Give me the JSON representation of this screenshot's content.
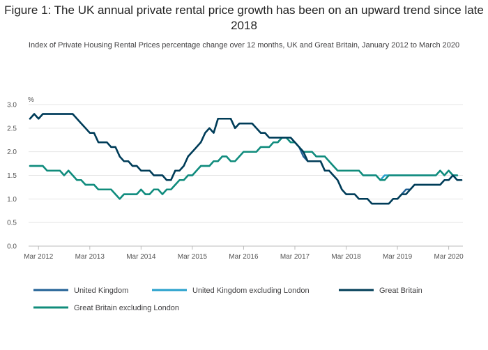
{
  "chart_data": {
    "type": "line",
    "title": "Figure 1: The UK annual private rental price growth has been on an upward trend since late 2018",
    "subtitle": "Index of Private Housing Rental Prices percentage change over 12 months, UK and Great Britain, January 2012 to March 2020",
    "ylabel": "%",
    "ylim": [
      0,
      3
    ],
    "yticks": [
      "0.0",
      "0.5",
      "1.0",
      "1.5",
      "2.0",
      "2.5",
      "3.0"
    ],
    "xticks": [
      "Mar 2012",
      "Mar 2013",
      "Mar 2014",
      "Mar 2015",
      "Mar 2016",
      "Mar 2017",
      "Mar 2018",
      "Mar 2019",
      "Mar 2020"
    ],
    "x_start": "Jan 2012",
    "x_end": "Mar 2020",
    "grid": true,
    "legend_position": "bottom",
    "series": [
      {
        "name": "United Kingdom",
        "color": "#206095",
        "values": [
          2.7,
          2.8,
          2.7,
          2.8,
          2.8,
          2.8,
          2.8,
          2.8,
          2.8,
          2.8,
          2.8,
          2.7,
          2.6,
          2.5,
          2.4,
          2.4,
          2.2,
          2.2,
          2.2,
          2.1,
          2.1,
          1.9,
          1.8,
          1.8,
          1.7,
          1.7,
          1.6,
          1.6,
          1.6,
          1.5,
          1.5,
          1.5,
          1.4,
          1.4,
          1.6,
          1.6,
          1.7,
          1.9,
          2.0,
          2.1,
          2.2,
          2.4,
          2.5,
          2.4,
          2.7,
          2.7,
          2.7,
          2.7,
          2.5,
          2.6,
          2.6,
          2.6,
          2.6,
          2.5,
          2.4,
          2.4,
          2.3,
          2.3,
          2.3,
          2.3,
          2.3,
          2.3,
          2.2,
          2.1,
          1.9,
          1.8,
          1.8,
          1.8,
          1.8,
          1.6,
          1.6,
          1.5,
          1.4,
          1.2,
          1.1,
          1.1,
          1.1,
          1.0,
          1.0,
          1.0,
          0.9,
          0.9,
          0.9,
          0.9,
          0.9,
          1.0,
          1.0,
          1.1,
          1.2,
          1.2,
          1.3,
          1.3,
          1.3,
          1.3,
          1.3,
          1.3,
          1.3,
          1.4,
          1.4,
          1.5,
          1.4,
          1.4
        ]
      },
      {
        "name": "United Kingdom excluding London",
        "color": "#27a0cc",
        "values": [
          1.7,
          1.7,
          1.7,
          1.7,
          1.6,
          1.6,
          1.6,
          1.6,
          1.5,
          1.6,
          1.5,
          1.4,
          1.4,
          1.3,
          1.3,
          1.3,
          1.2,
          1.2,
          1.2,
          1.2,
          1.1,
          1.0,
          1.1,
          1.1,
          1.1,
          1.1,
          1.2,
          1.1,
          1.1,
          1.2,
          1.2,
          1.1,
          1.2,
          1.2,
          1.3,
          1.4,
          1.4,
          1.5,
          1.5,
          1.6,
          1.7,
          1.7,
          1.7,
          1.8,
          1.8,
          1.9,
          1.9,
          1.8,
          1.8,
          1.9,
          2.0,
          2.0,
          2.0,
          2.0,
          2.1,
          2.1,
          2.1,
          2.2,
          2.2,
          2.3,
          2.3,
          2.2,
          2.2,
          2.1,
          2.0,
          2.0,
          2.0,
          1.9,
          1.9,
          1.9,
          1.8,
          1.7,
          1.6,
          1.6,
          1.6,
          1.6,
          1.6,
          1.6,
          1.5,
          1.5,
          1.5,
          1.5,
          1.4,
          1.5,
          1.5,
          1.5,
          1.5,
          1.5,
          1.5,
          1.5,
          1.5,
          1.5,
          1.5,
          1.5,
          1.5,
          1.5,
          1.6,
          1.5,
          1.6,
          1.5,
          1.5
        ]
      },
      {
        "name": "Great Britain",
        "color": "#003c57",
        "values": [
          2.7,
          2.8,
          2.7,
          2.8,
          2.8,
          2.8,
          2.8,
          2.8,
          2.8,
          2.8,
          2.8,
          2.7,
          2.6,
          2.5,
          2.4,
          2.4,
          2.2,
          2.2,
          2.2,
          2.1,
          2.1,
          1.9,
          1.8,
          1.8,
          1.7,
          1.7,
          1.6,
          1.6,
          1.6,
          1.5,
          1.5,
          1.5,
          1.4,
          1.4,
          1.6,
          1.6,
          1.7,
          1.9,
          2.0,
          2.1,
          2.2,
          2.4,
          2.5,
          2.4,
          2.7,
          2.7,
          2.7,
          2.7,
          2.5,
          2.6,
          2.6,
          2.6,
          2.6,
          2.5,
          2.4,
          2.4,
          2.3,
          2.3,
          2.3,
          2.3,
          2.3,
          2.3,
          2.2,
          2.1,
          2.0,
          1.8,
          1.8,
          1.8,
          1.8,
          1.6,
          1.6,
          1.5,
          1.4,
          1.2,
          1.1,
          1.1,
          1.1,
          1.0,
          1.0,
          1.0,
          0.9,
          0.9,
          0.9,
          0.9,
          0.9,
          1.0,
          1.0,
          1.1,
          1.1,
          1.2,
          1.3,
          1.3,
          1.3,
          1.3,
          1.3,
          1.3,
          1.3,
          1.4,
          1.4,
          1.5,
          1.4,
          1.4
        ]
      },
      {
        "name": "Great Britain excluding London",
        "color": "#118c7b",
        "values": [
          1.7,
          1.7,
          1.7,
          1.7,
          1.6,
          1.6,
          1.6,
          1.6,
          1.5,
          1.6,
          1.5,
          1.4,
          1.4,
          1.3,
          1.3,
          1.3,
          1.2,
          1.2,
          1.2,
          1.2,
          1.1,
          1.0,
          1.1,
          1.1,
          1.1,
          1.1,
          1.2,
          1.1,
          1.1,
          1.2,
          1.2,
          1.1,
          1.2,
          1.2,
          1.3,
          1.4,
          1.4,
          1.5,
          1.5,
          1.6,
          1.7,
          1.7,
          1.7,
          1.8,
          1.8,
          1.9,
          1.9,
          1.8,
          1.8,
          1.9,
          2.0,
          2.0,
          2.0,
          2.0,
          2.1,
          2.1,
          2.1,
          2.2,
          2.2,
          2.3,
          2.3,
          2.2,
          2.2,
          2.1,
          2.0,
          2.0,
          2.0,
          1.9,
          1.9,
          1.9,
          1.8,
          1.7,
          1.6,
          1.6,
          1.6,
          1.6,
          1.6,
          1.6,
          1.5,
          1.5,
          1.5,
          1.5,
          1.4,
          1.4,
          1.5,
          1.5,
          1.5,
          1.5,
          1.5,
          1.5,
          1.5,
          1.5,
          1.5,
          1.5,
          1.5,
          1.5,
          1.6,
          1.5,
          1.6,
          1.5,
          1.5
        ]
      }
    ]
  }
}
